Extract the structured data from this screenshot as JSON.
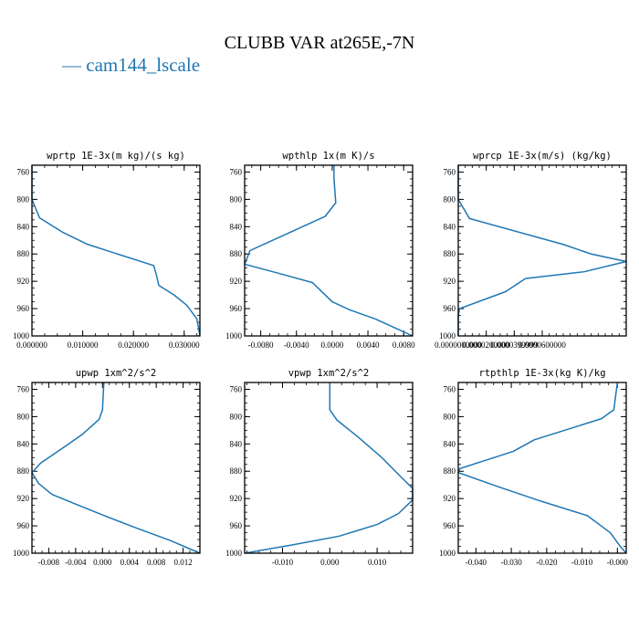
{
  "figure": {
    "title": "CLUBB VAR at265E,-7N",
    "legend_series": "cam144_lscale",
    "legend_dash": "—"
  },
  "colors": {
    "series": "#1f77b4",
    "axes": "#000000"
  },
  "chart_data": [
    {
      "type": "line",
      "title": "wprtp  1E-3x(m kg)/(s kg)",
      "series_name": "cam144_lscale",
      "xlim": [
        0.0,
        0.0331
      ],
      "ylim": [
        1000,
        750
      ],
      "yticks": [
        760,
        800,
        840,
        880,
        920,
        960,
        1000
      ],
      "xticks": [
        0.0,
        0.01,
        0.02,
        0.03
      ],
      "xtick_labels": [
        "0.000000",
        "0.010000",
        "0.020000",
        "0.030000"
      ],
      "x": [
        0.0,
        0.0,
        0.0015,
        0.006,
        0.011,
        0.024,
        0.0245,
        0.025,
        0.028,
        0.0305,
        0.0325,
        0.0331
      ],
      "y": [
        750,
        800,
        827,
        848,
        866,
        897,
        910,
        926,
        940,
        955,
        975,
        1000
      ]
    },
    {
      "type": "line",
      "title": "wpthlp  1x(m K)/s",
      "series_name": "cam144_lscale",
      "xlim": [
        -0.0098,
        0.009
      ],
      "ylim": [
        1000,
        750
      ],
      "yticks": [
        760,
        800,
        840,
        880,
        920,
        960,
        1000
      ],
      "xticks": [
        -0.008,
        -0.004,
        0.0,
        0.004,
        0.008
      ],
      "xtick_labels": [
        "-0.0080",
        "-0.0040",
        "0.0000",
        "0.0040",
        "0.0080"
      ],
      "x": [
        0.0002,
        0.0002,
        0.0004,
        -0.0008,
        -0.005,
        -0.0092,
        -0.0095,
        -0.0098,
        -0.0055,
        -0.0022,
        0.0,
        0.002,
        0.0048,
        0.007,
        0.009
      ],
      "y": [
        750,
        770,
        805,
        825,
        850,
        875,
        885,
        895,
        910,
        922,
        950,
        962,
        975,
        988,
        1000
      ]
    },
    {
      "type": "line",
      "title": "wprcp  1E-3x(m/s) (kg/kg)",
      "series_name": "cam144_lscale",
      "xlim": [
        0.0,
        0.00012
      ],
      "ylim": [
        1000,
        750
      ],
      "yticks": [
        760,
        800,
        840,
        880,
        920,
        960,
        1000
      ],
      "xticks": [
        0.0,
        2e-05,
        4e-05,
        6e-05
      ],
      "xtick_labels": [
        "0.0000000000",
        "0.0000200000",
        "0.0000399999",
        "0.0000600000"
      ],
      "x": [
        0.0,
        0.0,
        8e-06,
        7.5e-05,
        9.5e-05,
        0.00012,
        9e-05,
        4.8e-05,
        3.4e-05,
        1e-06,
        0.0,
        0.0
      ],
      "y": [
        750,
        800,
        828,
        866,
        880,
        891,
        906,
        916,
        935,
        960,
        970,
        1000
      ]
    },
    {
      "type": "line",
      "title": "upwp  1xm^2/s^2",
      "series_name": "cam144_lscale",
      "xlim": [
        -0.0105,
        0.0145
      ],
      "ylim": [
        1000,
        750
      ],
      "yticks": [
        760,
        800,
        840,
        880,
        920,
        960,
        1000
      ],
      "xticks": [
        -0.008,
        -0.004,
        0.0,
        0.004,
        0.008,
        0.012
      ],
      "xtick_labels": [
        "-0.008",
        "-0.004",
        "0.000",
        "0.004",
        "0.008",
        "0.012"
      ],
      "x": [
        0.0002,
        0.0,
        -0.0005,
        -0.003,
        -0.0065,
        -0.0092,
        -0.0105,
        -0.0095,
        -0.0075,
        -0.004,
        0.0,
        0.005,
        0.01,
        0.0145
      ],
      "y": [
        750,
        790,
        804,
        826,
        850,
        868,
        882,
        898,
        914,
        928,
        944,
        963,
        981,
        1000
      ]
    },
    {
      "type": "line",
      "title": "vpwp  1xm^2/s^2",
      "series_name": "cam144_lscale",
      "xlim": [
        -0.018,
        0.0175
      ],
      "ylim": [
        1000,
        750
      ],
      "yticks": [
        760,
        800,
        840,
        880,
        920,
        960,
        1000
      ],
      "xticks": [
        -0.01,
        0.0,
        0.01
      ],
      "xtick_labels": [
        "-0.010",
        "0.000",
        "0.010"
      ],
      "x": [
        0.0,
        0.0,
        0.0015,
        0.006,
        0.011,
        0.015,
        0.0175,
        0.0175,
        0.0145,
        0.01,
        0.002,
        -0.008,
        -0.018
      ],
      "y": [
        750,
        790,
        805,
        830,
        860,
        888,
        905,
        922,
        942,
        958,
        975,
        988,
        1000
      ]
    },
    {
      "type": "line",
      "title": "rtpthlp  1E-3x(kg K)/kg",
      "series_name": "cam144_lscale",
      "xlim": [
        -0.045,
        0.0025
      ],
      "ylim": [
        1000,
        750
      ],
      "yticks": [
        760,
        800,
        840,
        880,
        920,
        960,
        1000
      ],
      "xticks": [
        -0.04,
        -0.03,
        -0.02,
        -0.01,
        0.0
      ],
      "xtick_labels": [
        "-0.040",
        "-0.030",
        "-0.020",
        "-0.010",
        "-0.000"
      ],
      "x": [
        0.0,
        -0.001,
        -0.0045,
        -0.0235,
        -0.0295,
        -0.0445,
        -0.045,
        -0.0335,
        -0.0215,
        -0.0085,
        -0.002,
        0.0008,
        0.0025
      ],
      "y": [
        750,
        790,
        803,
        834,
        851,
        876,
        882,
        903,
        924,
        945,
        970,
        990,
        1000
      ]
    }
  ]
}
